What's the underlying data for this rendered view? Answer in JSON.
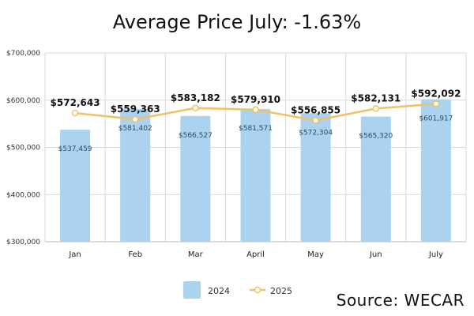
{
  "title": "Average Price July: -1.63%",
  "source": "Source: WECAR",
  "colors": {
    "bar": "#abd3ef",
    "line": "#f2c065",
    "grid": "#d9d9d9",
    "bar_label": "#2a4a66"
  },
  "chart_data": {
    "type": "bar",
    "title": "Average Price July: -1.63%",
    "categories": [
      "Jan",
      "Feb",
      "Mar",
      "April",
      "May",
      "Jun",
      "July"
    ],
    "ylim": [
      300000,
      700000
    ],
    "yticks": [
      300000,
      400000,
      500000,
      600000,
      700000
    ],
    "ytick_labels": [
      "$300,000",
      "$400,000",
      "$500,000",
      "$600,000",
      "$700,000"
    ],
    "grid": true,
    "legend_position": "bottom-center",
    "series": [
      {
        "name": "2024",
        "kind": "bar",
        "values": [
          537459,
          581402,
          566527,
          581571,
          572304,
          565320,
          601917
        ],
        "labels": [
          "$537,459",
          "$581,402",
          "$566,527",
          "$581,571",
          "$572,304",
          "$565,320",
          "$601,917"
        ]
      },
      {
        "name": "2025",
        "kind": "line",
        "values": [
          572643,
          559363,
          583182,
          579910,
          556855,
          582131,
          592092
        ],
        "labels": [
          "$572,643",
          "$559,363",
          "$583,182",
          "$579,910",
          "$556,855",
          "$582,131",
          "$592,092"
        ]
      }
    ]
  }
}
